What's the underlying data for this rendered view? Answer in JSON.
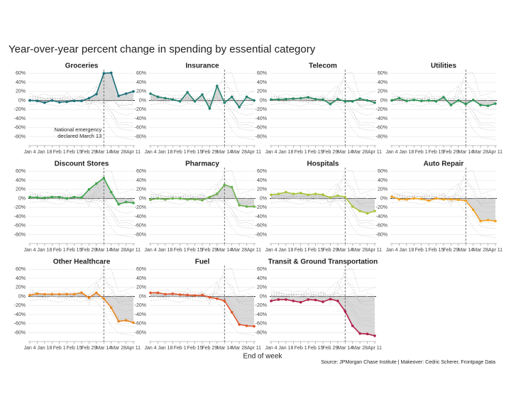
{
  "chart_data": {
    "type": "line",
    "title": "Year-over-year percent change in spending by essential category",
    "x_label": "End of week",
    "caption": "Source: JPMorgan Chase Institute | Makeover: Cedric Scherer, Frontpage Data",
    "annotation": "National emergency\ndeclared March 13",
    "categories": [
      "Jan 4",
      null,
      "Jan 18",
      null,
      "Feb 1",
      null,
      "Feb 15",
      null,
      "Feb 29",
      null,
      "Mar 14",
      null,
      "Mar 28",
      null,
      "Apr 11"
    ],
    "ylim": [
      -95,
      65
    ],
    "yticks": [
      {
        "value": -80,
        "label": "-80%"
      },
      {
        "value": -60,
        "label": "-60%"
      },
      {
        "value": -40,
        "label": "-40%"
      },
      {
        "value": -20,
        "label": "-20%"
      },
      {
        "value": 0,
        "label": "0%"
      },
      {
        "value": 20,
        "label": "20%"
      },
      {
        "value": 40,
        "label": "40%"
      },
      {
        "value": 60,
        "label": "60%"
      }
    ],
    "grid": true,
    "series": [
      {
        "name": "Groceries",
        "color": "#1b6e78",
        "values": [
          0,
          -1,
          -5,
          0,
          -4,
          -3,
          -1,
          -1,
          5,
          14,
          60,
          61,
          10,
          15,
          20
        ]
      },
      {
        "name": "Insurance",
        "color": "#25806f",
        "values": [
          15,
          8,
          5,
          2,
          -2,
          18,
          -2,
          13,
          -18,
          32,
          -5,
          8,
          -15,
          8,
          0
        ]
      },
      {
        "name": "Telecom",
        "color": "#2a8a60",
        "values": [
          2,
          2,
          3,
          4,
          5,
          7,
          3,
          2,
          -8,
          3,
          -2,
          -2,
          4,
          0,
          -5
        ]
      },
      {
        "name": "Utilities",
        "color": "#2e9457",
        "values": [
          0,
          5,
          -1,
          1,
          -1,
          0,
          -2,
          7,
          -10,
          0,
          -8,
          1,
          -10,
          -12,
          -7
        ]
      },
      {
        "name": "Discount Stores",
        "color": "#3fa34d",
        "values": [
          3,
          2,
          1,
          3,
          3,
          0,
          3,
          2,
          20,
          33,
          45,
          14,
          -13,
          -8,
          -10
        ]
      },
      {
        "name": "Pharmacy",
        "color": "#6ab04c",
        "values": [
          -3,
          0,
          -2,
          0,
          0,
          -2,
          -2,
          -4,
          3,
          10,
          30,
          25,
          -15,
          -18,
          -18
        ]
      },
      {
        "name": "Hospitals",
        "color": "#a8c43c",
        "values": [
          8,
          10,
          14,
          10,
          12,
          8,
          10,
          8,
          2,
          6,
          3,
          -18,
          -28,
          -33,
          -28
        ]
      },
      {
        "name": "Auto Repair",
        "color": "#f0a020",
        "values": [
          4,
          -2,
          -2,
          0,
          -1,
          -5,
          0,
          -2,
          -2,
          -3,
          -5,
          -25,
          -50,
          -48,
          -50
        ]
      },
      {
        "name": "Other Healthcare",
        "color": "#e98520",
        "values": [
          3,
          6,
          5,
          5,
          5,
          5,
          5,
          8,
          -3,
          8,
          -5,
          -25,
          -55,
          -53,
          -58
        ]
      },
      {
        "name": "Fuel",
        "color": "#e0552a",
        "values": [
          8,
          8,
          5,
          6,
          4,
          3,
          2,
          3,
          -2,
          -5,
          -10,
          -35,
          -62,
          -65,
          -66
        ]
      },
      {
        "name": "Transit & Ground Transportation",
        "color": "#b0204a",
        "values": [
          -10,
          -7,
          -7,
          -10,
          -13,
          -7,
          -8,
          -12,
          -6,
          -10,
          -33,
          -65,
          -82,
          -83,
          -87
        ]
      }
    ]
  }
}
